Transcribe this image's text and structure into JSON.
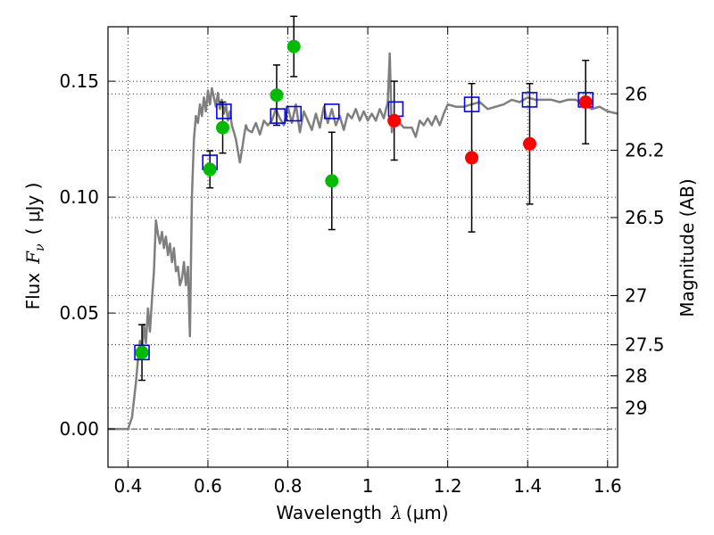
{
  "chart_data": {
    "type": "scatter",
    "xlabel": {
      "prefix": "Wavelength",
      "symbol": "λ",
      "unit": "(μm)"
    },
    "ylabel": {
      "prefix": "Flux",
      "symbol": "F",
      "subscript": "ν",
      "unit": "( μJy )"
    },
    "y2label": "Magnitude (AB)",
    "xlim": [
      0.35,
      1.625
    ],
    "ylim": [
      -0.0165,
      0.1735
    ],
    "grid": true,
    "grid_style": "dotted",
    "x_ticks": [
      {
        "value": 0.4,
        "label": "0.4"
      },
      {
        "value": 0.6,
        "label": "0.6"
      },
      {
        "value": 0.8,
        "label": "0.8"
      },
      {
        "value": 1.0,
        "label": "1"
      },
      {
        "value": 1.2,
        "label": "1.2"
      },
      {
        "value": 1.4,
        "label": "1.4"
      },
      {
        "value": 1.6,
        "label": "1.6"
      }
    ],
    "y_ticks": [
      {
        "value": 0.0,
        "label": "0.00"
      },
      {
        "value": 0.05,
        "label": "0.05"
      },
      {
        "value": 0.1,
        "label": "0.10"
      },
      {
        "value": 0.15,
        "label": "0.15"
      }
    ],
    "y2_ticks": [
      {
        "value": 26.0,
        "label": "26"
      },
      {
        "value": 26.2,
        "label": "26.2"
      },
      {
        "value": 26.5,
        "label": "26.5"
      },
      {
        "value": 27.0,
        "label": "27"
      },
      {
        "value": 27.5,
        "label": "27.5"
      },
      {
        "value": 28.0,
        "label": "28"
      },
      {
        "value": 29.0,
        "label": "29"
      }
    ],
    "model_spectrum": {
      "color": "#7f7f7f",
      "x": [
        0.35,
        0.4,
        0.41,
        0.42,
        0.425,
        0.43,
        0.435,
        0.44,
        0.445,
        0.45,
        0.455,
        0.46,
        0.465,
        0.47,
        0.475,
        0.48,
        0.485,
        0.49,
        0.495,
        0.5,
        0.505,
        0.51,
        0.515,
        0.52,
        0.525,
        0.53,
        0.535,
        0.54,
        0.545,
        0.55,
        0.555,
        0.56,
        0.565,
        0.57,
        0.575,
        0.58,
        0.585,
        0.59,
        0.595,
        0.6,
        0.605,
        0.61,
        0.615,
        0.62,
        0.625,
        0.63,
        0.635,
        0.64,
        0.645,
        0.65,
        0.655,
        0.66,
        0.665,
        0.67,
        0.675,
        0.68,
        0.685,
        0.69,
        0.695,
        0.7,
        0.71,
        0.72,
        0.73,
        0.74,
        0.75,
        0.76,
        0.77,
        0.78,
        0.79,
        0.8,
        0.81,
        0.82,
        0.83,
        0.84,
        0.85,
        0.86,
        0.87,
        0.88,
        0.89,
        0.9,
        0.91,
        0.92,
        0.93,
        0.94,
        0.95,
        0.96,
        0.97,
        0.98,
        0.99,
        1.0,
        1.01,
        1.02,
        1.03,
        1.04,
        1.05,
        1.055,
        1.06,
        1.065,
        1.07,
        1.08,
        1.09,
        1.1,
        1.11,
        1.12,
        1.13,
        1.14,
        1.15,
        1.16,
        1.17,
        1.18,
        1.19,
        1.2,
        1.22,
        1.24,
        1.26,
        1.28,
        1.3,
        1.32,
        1.34,
        1.36,
        1.38,
        1.4,
        1.42,
        1.44,
        1.46,
        1.48,
        1.5,
        1.52,
        1.54,
        1.56,
        1.58,
        1.6,
        1.625
      ],
      "y": [
        0.0,
        0.0,
        0.005,
        0.02,
        0.03,
        0.038,
        0.033,
        0.045,
        0.037,
        0.052,
        0.042,
        0.056,
        0.068,
        0.09,
        0.084,
        0.08,
        0.085,
        0.078,
        0.083,
        0.075,
        0.08,
        0.072,
        0.078,
        0.068,
        0.07,
        0.062,
        0.065,
        0.072,
        0.062,
        0.07,
        0.04,
        0.1,
        0.125,
        0.135,
        0.132,
        0.14,
        0.135,
        0.143,
        0.137,
        0.146,
        0.14,
        0.147,
        0.143,
        0.139,
        0.145,
        0.138,
        0.142,
        0.136,
        0.14,
        0.133,
        0.137,
        0.131,
        0.128,
        0.125,
        0.12,
        0.115,
        0.12,
        0.126,
        0.131,
        0.129,
        0.128,
        0.132,
        0.127,
        0.133,
        0.131,
        0.133,
        0.138,
        0.134,
        0.131,
        0.139,
        0.132,
        0.14,
        0.128,
        0.137,
        0.133,
        0.129,
        0.136,
        0.13,
        0.139,
        0.132,
        0.138,
        0.131,
        0.135,
        0.129,
        0.136,
        0.134,
        0.138,
        0.133,
        0.137,
        0.133,
        0.136,
        0.133,
        0.138,
        0.134,
        0.141,
        0.162,
        0.128,
        0.135,
        0.134,
        0.132,
        0.13,
        0.13,
        0.13,
        0.126,
        0.133,
        0.131,
        0.134,
        0.131,
        0.135,
        0.131,
        0.136,
        0.14,
        0.139,
        0.139,
        0.14,
        0.141,
        0.138,
        0.139,
        0.14,
        0.142,
        0.141,
        0.143,
        0.142,
        0.142,
        0.142,
        0.141,
        0.142,
        0.142,
        0.14,
        0.138,
        0.139,
        0.137,
        0.136
      ]
    },
    "series": [
      {
        "marker": "open-square",
        "color": "#0000ff",
        "points": [
          {
            "x": 0.435,
            "y": 0.033
          },
          {
            "x": 0.605,
            "y": 0.115
          },
          {
            "x": 0.64,
            "y": 0.137
          },
          {
            "x": 0.775,
            "y": 0.135
          },
          {
            "x": 0.815,
            "y": 0.136
          },
          {
            "x": 0.91,
            "y": 0.137
          },
          {
            "x": 1.07,
            "y": 0.138
          },
          {
            "x": 1.26,
            "y": 0.14
          },
          {
            "x": 1.405,
            "y": 0.142
          },
          {
            "x": 1.545,
            "y": 0.142
          }
        ]
      },
      {
        "marker": "filled-circle",
        "color": "#00bb00",
        "points": [
          {
            "x": 0.435,
            "y": 0.033,
            "err": 0.012
          },
          {
            "x": 0.605,
            "y": 0.112,
            "err": 0.008
          },
          {
            "x": 0.637,
            "y": 0.13,
            "err": 0.011
          },
          {
            "x": 0.772,
            "y": 0.144,
            "err": 0.013
          },
          {
            "x": 0.815,
            "y": 0.165,
            "err": 0.013
          },
          {
            "x": 0.91,
            "y": 0.107,
            "err": 0.021
          }
        ]
      },
      {
        "marker": "filled-circle",
        "color": "#ff0000",
        "points": [
          {
            "x": 1.066,
            "y": 0.133,
            "err": 0.017
          },
          {
            "x": 1.26,
            "y": 0.117,
            "err": 0.032
          },
          {
            "x": 1.405,
            "y": 0.123,
            "err": 0.026
          },
          {
            "x": 1.545,
            "y": 0.141,
            "err": 0.018
          }
        ]
      }
    ]
  }
}
